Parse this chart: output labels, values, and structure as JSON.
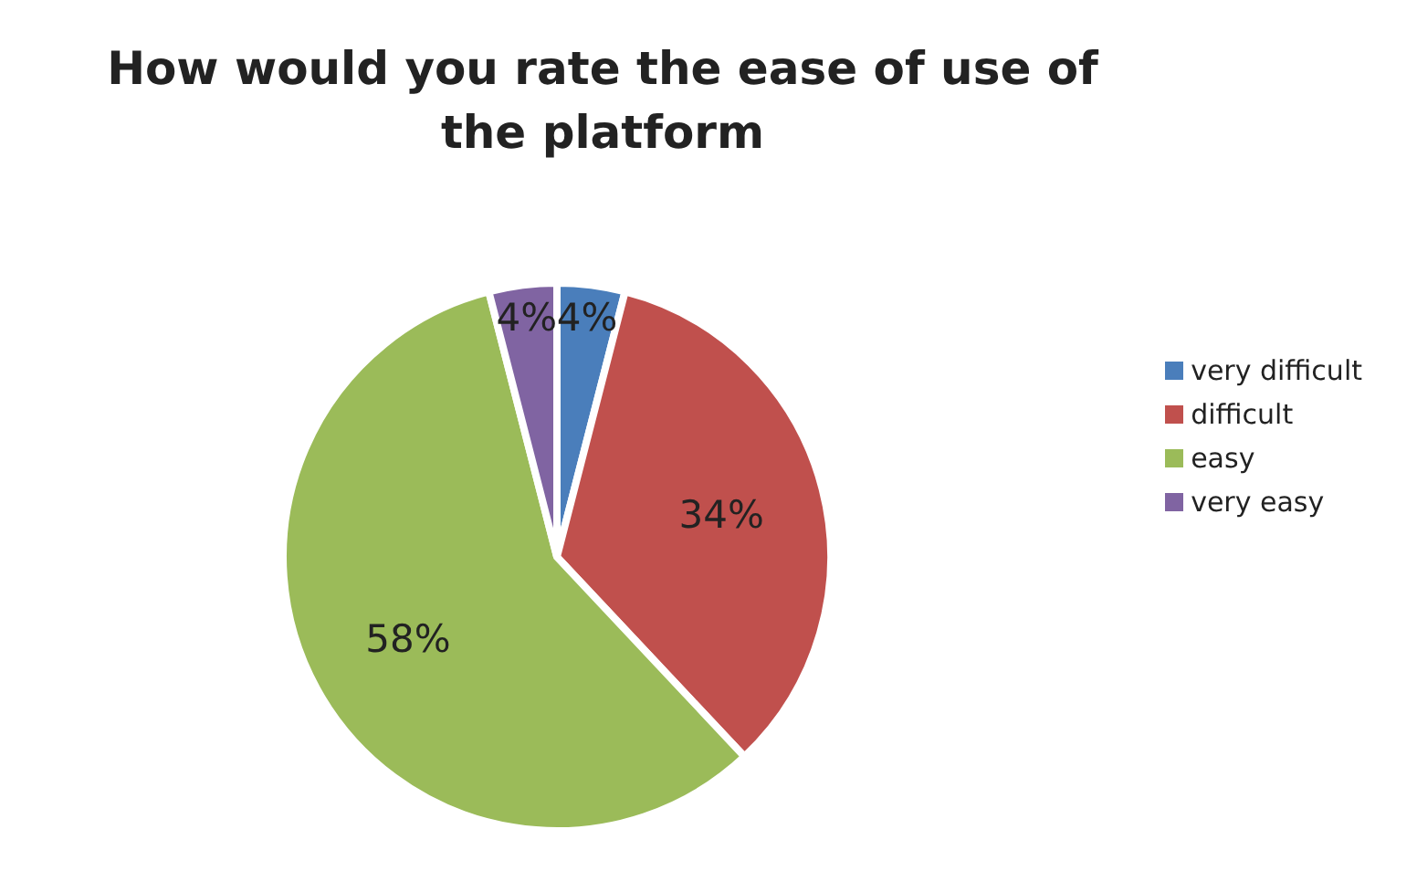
{
  "chart_data": {
    "type": "pie",
    "title": "How would you rate the ease of use of the platform",
    "categories": [
      "very difficult",
      "difficult",
      "easy",
      "very easy"
    ],
    "values": [
      4,
      34,
      58,
      4
    ],
    "value_labels": [
      "4%",
      "34%",
      "58%",
      "4%"
    ],
    "colors": [
      "#4a7ebb",
      "#c0504d",
      "#9bbb59",
      "#8064a2"
    ],
    "legend": "right"
  }
}
